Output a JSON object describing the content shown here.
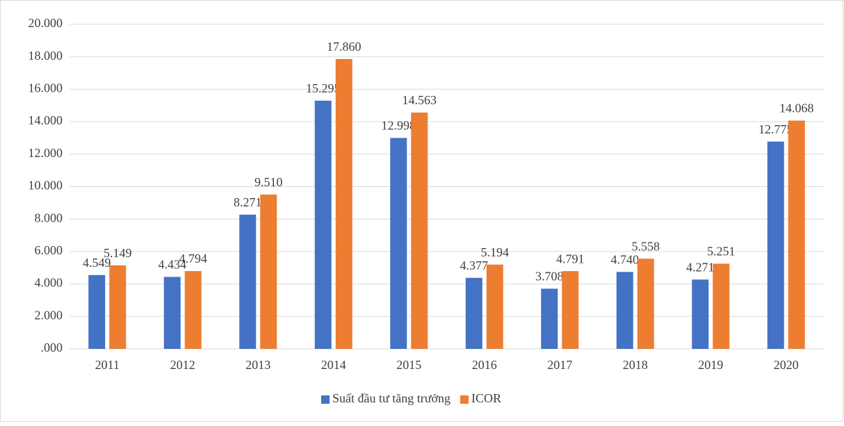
{
  "chart_data": {
    "type": "bar",
    "categories": [
      "2011",
      "2012",
      "2013",
      "2014",
      "2015",
      "2016",
      "2017",
      "2018",
      "2019",
      "2020"
    ],
    "series": [
      {
        "name": "Suất đầu tư tăng trưởng",
        "color": "#4472c4",
        "values": [
          4.549,
          4.434,
          8.271,
          15.295,
          12.998,
          4.377,
          3.708,
          4.74,
          4.271,
          12.775
        ],
        "value_labels": [
          "4.549",
          "4.434",
          "8.271",
          "15.295",
          "12.998",
          "4.377",
          "3.708",
          "4.740",
          "4.271",
          "12.775"
        ]
      },
      {
        "name": "ICOR",
        "color": "#ed7d31",
        "values": [
          5.149,
          4.794,
          9.51,
          17.86,
          14.563,
          5.194,
          4.791,
          5.558,
          5.251,
          14.068
        ],
        "value_labels": [
          "5.149",
          "4.794",
          "9.510",
          "17.860",
          "14.563",
          "5.194",
          "4.791",
          "5.558",
          "5.251",
          "14.068"
        ]
      }
    ],
    "ylim": [
      0,
      20
    ],
    "yticks": [
      {
        "value": 0,
        "label": ".000"
      },
      {
        "value": 2,
        "label": "2.000"
      },
      {
        "value": 4,
        "label": "4.000"
      },
      {
        "value": 6,
        "label": "6.000"
      },
      {
        "value": 8,
        "label": "8.000"
      },
      {
        "value": 10,
        "label": "10.000"
      },
      {
        "value": 12,
        "label": "12.000"
      },
      {
        "value": 14,
        "label": "14.000"
      },
      {
        "value": 16,
        "label": "16.000"
      },
      {
        "value": 18,
        "label": "18.000"
      },
      {
        "value": 20,
        "label": "20.000"
      }
    ],
    "grid": true,
    "legend": "bottom"
  }
}
